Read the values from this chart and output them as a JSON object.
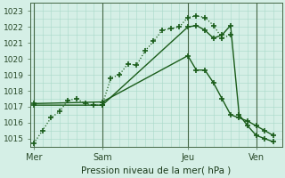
{
  "xlabel": "Pression niveau de la mer( hPa )",
  "bg_color": "#d5efe6",
  "grid_color": "#a8d8c8",
  "line_color": "#1a5c1a",
  "ylim": [
    1014.5,
    1023.5
  ],
  "yticks": [
    1015,
    1016,
    1017,
    1018,
    1019,
    1020,
    1021,
    1022,
    1023
  ],
  "xtick_labels": [
    "Mer",
    "Sam",
    "Jeu",
    "Ven"
  ],
  "xtick_positions": [
    0,
    4,
    9,
    13
  ],
  "vline_positions": [
    0,
    4,
    9,
    13
  ],
  "xlim": [
    -0.2,
    14.5
  ],
  "series1_x": [
    0,
    0.5,
    1,
    1.5,
    2,
    2.5,
    3,
    3.5,
    4,
    4.5,
    5,
    5.5,
    6,
    6.5,
    7,
    7.5,
    8,
    8.5,
    9,
    9.5,
    10,
    10.5,
    11,
    11.5
  ],
  "series1_y": [
    1014.7,
    1015.5,
    1016.3,
    1016.7,
    1017.4,
    1017.5,
    1017.2,
    1017.1,
    1017.1,
    1018.8,
    1019.0,
    1019.7,
    1019.6,
    1020.5,
    1021.1,
    1021.8,
    1021.9,
    1022.0,
    1022.6,
    1022.7,
    1022.6,
    1022.1,
    1021.3,
    1021.5
  ],
  "series2_x": [
    0,
    4,
    9,
    9.5,
    10,
    10.5,
    11,
    11.5,
    12,
    12.5,
    13,
    13.5,
    14
  ],
  "series2_y": [
    1017.1,
    1017.1,
    1022.0,
    1022.1,
    1021.8,
    1021.3,
    1021.5,
    1022.1,
    1016.5,
    1015.8,
    1015.2,
    1015.0,
    1014.8
  ],
  "series3_x": [
    0,
    4,
    9,
    9.5,
    10,
    10.5,
    11,
    11.5,
    12,
    12.5,
    13,
    13.5,
    14
  ],
  "series3_y": [
    1017.2,
    1017.3,
    1020.2,
    1019.3,
    1019.3,
    1018.5,
    1017.5,
    1016.5,
    1016.3,
    1016.1,
    1015.8,
    1015.5,
    1015.2
  ]
}
